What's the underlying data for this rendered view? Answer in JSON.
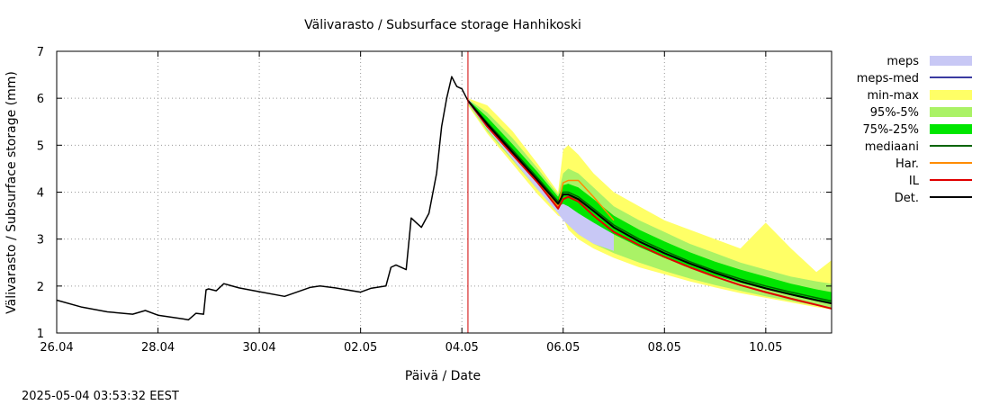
{
  "chart_data": {
    "type": "line",
    "title": "Välivarasto / Subsurface storage  Hanhikoski",
    "xlabel": "Päivä / Date",
    "ylabel": "Välivarasto / Subsurface storage (mm)",
    "timestamp": "2025-05-04 03:53:32 EEST",
    "x_unit": "days since 26.04",
    "xlim": [
      0,
      15.3
    ],
    "ylim": [
      1,
      7
    ],
    "grid": true,
    "legend_position": "right",
    "x_ticks": [
      {
        "x": 0,
        "label": "26.04"
      },
      {
        "x": 2,
        "label": "28.04"
      },
      {
        "x": 4,
        "label": "30.04"
      },
      {
        "x": 6,
        "label": "02.05"
      },
      {
        "x": 8,
        "label": "04.05"
      },
      {
        "x": 10,
        "label": "06.05"
      },
      {
        "x": 12,
        "label": "08.05"
      },
      {
        "x": 14,
        "label": "10.05"
      }
    ],
    "y_ticks": [
      1,
      2,
      3,
      4,
      5,
      6,
      7
    ],
    "forecast_start": 8.12,
    "legend": [
      {
        "key": "meps",
        "label": "meps",
        "kind": "band",
        "color": "#c8c8f5"
      },
      {
        "key": "meps_med",
        "label": "meps-med",
        "kind": "line",
        "color": "#3a3aa0"
      },
      {
        "key": "minmax",
        "label": "min-max",
        "kind": "band",
        "color": "#ffff66"
      },
      {
        "key": "p95_5",
        "label": "95%-5%",
        "kind": "band",
        "color": "#aaf266"
      },
      {
        "key": "p75_25",
        "label": "75%-25%",
        "kind": "band",
        "color": "#00e600"
      },
      {
        "key": "median",
        "label": "mediaani",
        "kind": "line",
        "color": "#006400"
      },
      {
        "key": "har",
        "label": "Har.",
        "kind": "line",
        "color": "#ff8c00"
      },
      {
        "key": "il",
        "label": "IL",
        "kind": "line",
        "color": "#e00000"
      },
      {
        "key": "det",
        "label": "Det.",
        "kind": "line",
        "color": "#000000"
      }
    ],
    "series": {
      "observed": {
        "name": "Det. (observed)",
        "color": "#000000",
        "x": [
          0,
          0.5,
          1,
          1.5,
          1.75,
          2,
          2.5,
          2.6,
          2.75,
          2.9,
          2.95,
          3.0,
          3.15,
          3.3,
          3.6,
          4.0,
          4.5,
          5.0,
          5.2,
          5.5,
          6.0,
          6.2,
          6.5,
          6.6,
          6.7,
          6.9,
          7.0,
          7.05,
          7.1,
          7.2,
          7.35,
          7.5,
          7.6,
          7.7,
          7.8,
          7.85,
          7.9,
          8.0,
          8.12
        ],
        "y": [
          1.7,
          1.55,
          1.45,
          1.4,
          1.48,
          1.38,
          1.3,
          1.28,
          1.42,
          1.4,
          1.92,
          1.94,
          1.9,
          2.05,
          1.96,
          1.88,
          1.78,
          1.97,
          2.0,
          1.96,
          1.87,
          1.95,
          2.0,
          2.4,
          2.45,
          2.35,
          3.45,
          3.4,
          3.35,
          3.25,
          3.55,
          4.4,
          5.4,
          6.0,
          6.46,
          6.35,
          6.25,
          6.2,
          5.95
        ]
      },
      "det": {
        "name": "Det.",
        "color": "#000000",
        "x": [
          8.12,
          8.5,
          9.0,
          9.5,
          9.9,
          10.0,
          10.1,
          10.3,
          10.6,
          11,
          11.5,
          12,
          12.5,
          13,
          13.5,
          14,
          14.5,
          15,
          15.3
        ],
        "y": [
          5.95,
          5.45,
          4.85,
          4.25,
          3.75,
          3.95,
          3.95,
          3.85,
          3.6,
          3.25,
          2.95,
          2.7,
          2.48,
          2.28,
          2.1,
          1.95,
          1.82,
          1.7,
          1.63
        ]
      },
      "meps_med": {
        "name": "meps-med",
        "color": "#3a3aa0",
        "x": [
          8.12,
          8.5,
          9.0,
          9.5,
          9.9,
          10.0,
          10.1,
          10.3,
          10.6,
          11.0
        ],
        "y": [
          5.95,
          5.45,
          4.85,
          4.25,
          3.75,
          3.95,
          3.95,
          3.85,
          3.6,
          3.25
        ]
      },
      "median": {
        "name": "mediaani",
        "color": "#006400",
        "x": [
          8.12,
          8.5,
          9.0,
          9.5,
          9.9,
          10.0,
          10.1,
          10.3,
          10.6,
          11,
          11.5,
          12,
          12.5,
          13,
          13.5,
          14,
          14.5,
          15,
          15.3
        ],
        "y": [
          5.95,
          5.48,
          4.9,
          4.3,
          3.8,
          4.0,
          4.0,
          3.9,
          3.65,
          3.3,
          3.0,
          2.75,
          2.52,
          2.32,
          2.15,
          2.0,
          1.87,
          1.75,
          1.68
        ]
      },
      "har": {
        "name": "Har.",
        "color": "#ff8c00",
        "x": [
          8.12,
          8.5,
          9.0,
          9.5,
          9.9,
          10.0,
          10.1,
          10.3,
          10.6,
          11.0
        ],
        "y": [
          5.95,
          5.4,
          4.8,
          4.2,
          3.7,
          4.2,
          4.25,
          4.25,
          3.9,
          3.4
        ]
      },
      "il": {
        "name": "IL",
        "color": "#e00000",
        "x": [
          8.12,
          8.5,
          9.0,
          9.5,
          9.9,
          10.0,
          10.1,
          10.3,
          10.6,
          11,
          11.5,
          12,
          12.5,
          13,
          13.5,
          14,
          14.5,
          15,
          15.3
        ],
        "y": [
          5.95,
          5.4,
          4.8,
          4.2,
          3.65,
          3.85,
          3.9,
          3.8,
          3.5,
          3.15,
          2.87,
          2.62,
          2.4,
          2.2,
          2.02,
          1.87,
          1.73,
          1.6,
          1.52
        ]
      }
    },
    "bands": {
      "meps": {
        "color": "#c8c8f5",
        "x": [
          8.12,
          8.5,
          9.0,
          9.5,
          9.9,
          10.0,
          10.1,
          10.3,
          10.6,
          11.0
        ],
        "lower": [
          5.9,
          5.35,
          4.7,
          4.05,
          3.55,
          3.4,
          3.3,
          3.1,
          2.9,
          2.75
        ],
        "upper": [
          6.0,
          5.55,
          4.95,
          4.35,
          3.85,
          4.05,
          4.05,
          3.95,
          3.7,
          3.35
        ]
      },
      "minmax": {
        "color": "#ffff66",
        "x": [
          8.12,
          8.5,
          9.0,
          9.5,
          9.9,
          10.0,
          10.1,
          10.3,
          10.6,
          11.0,
          11.5,
          12.0,
          12.5,
          13.0,
          13.5,
          14.0,
          14.5,
          15.0,
          15.3
        ],
        "lower": [
          5.85,
          5.25,
          4.6,
          3.95,
          3.5,
          3.45,
          3.2,
          3.0,
          2.8,
          2.6,
          2.4,
          2.25,
          2.1,
          1.97,
          1.85,
          1.75,
          1.65,
          1.55,
          1.5
        ],
        "upper": [
          6.0,
          5.85,
          5.3,
          4.6,
          4.0,
          4.9,
          5.0,
          4.8,
          4.4,
          4.0,
          3.7,
          3.4,
          3.2,
          3.0,
          2.8,
          3.35,
          2.8,
          2.3,
          2.55
        ]
      },
      "p95_5": {
        "color": "#aaf266",
        "x": [
          8.12,
          8.5,
          9.0,
          9.5,
          9.9,
          10.0,
          10.1,
          10.3,
          10.6,
          11.0,
          11.5,
          12.0,
          12.5,
          13.0,
          13.5,
          14.0,
          14.5,
          15.0,
          15.3
        ],
        "lower": [
          5.88,
          5.3,
          4.68,
          4.05,
          3.6,
          3.5,
          3.3,
          3.1,
          2.9,
          2.7,
          2.5,
          2.32,
          2.16,
          2.02,
          1.9,
          1.78,
          1.68,
          1.58,
          1.53
        ],
        "upper": [
          5.98,
          5.7,
          5.15,
          4.5,
          3.95,
          4.4,
          4.5,
          4.4,
          4.1,
          3.7,
          3.4,
          3.15,
          2.9,
          2.7,
          2.5,
          2.35,
          2.2,
          2.1,
          2.05
        ]
      },
      "p75_25": {
        "color": "#00e600",
        "x": [
          8.12,
          8.5,
          9.0,
          9.5,
          9.9,
          10.0,
          10.1,
          10.3,
          10.6,
          11.0,
          11.5,
          12.0,
          12.5,
          13.0,
          13.5,
          14.0,
          14.5,
          15.0,
          15.3
        ],
        "lower": [
          5.92,
          5.38,
          4.78,
          4.18,
          3.7,
          3.75,
          3.7,
          3.55,
          3.35,
          3.1,
          2.83,
          2.6,
          2.4,
          2.22,
          2.07,
          1.93,
          1.8,
          1.68,
          1.62
        ],
        "upper": [
          5.97,
          5.6,
          5.02,
          4.42,
          3.9,
          4.15,
          4.18,
          4.1,
          3.85,
          3.5,
          3.2,
          2.95,
          2.72,
          2.52,
          2.35,
          2.2,
          2.05,
          1.93,
          1.87
        ]
      }
    }
  }
}
